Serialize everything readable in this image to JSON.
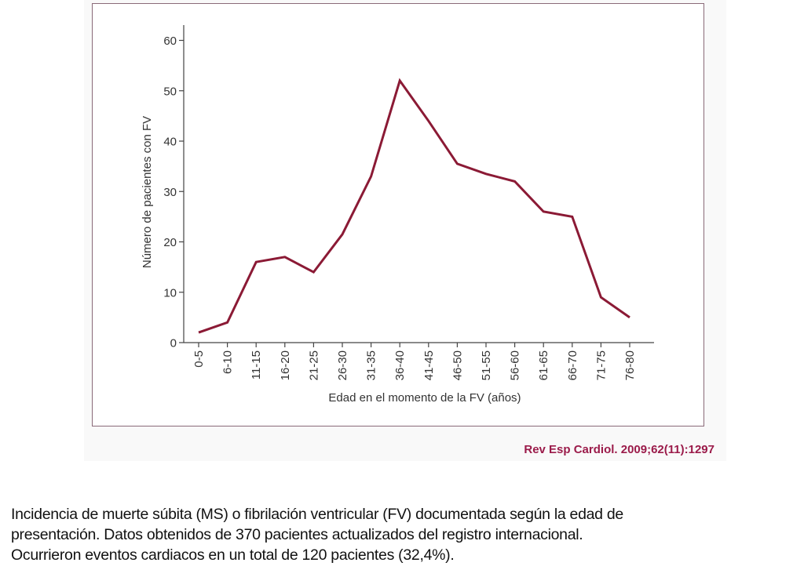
{
  "chart_data": {
    "type": "line",
    "title": "",
    "xlabel": "Edad en el momento de la FV (años)",
    "ylabel": "Número de pacientes con FV",
    "categories": [
      "0-5",
      "6-10",
      "11-15",
      "16-20",
      "21-25",
      "26-30",
      "31-35",
      "36-40",
      "41-45",
      "46-50",
      "51-55",
      "56-60",
      "61-65",
      "66-70",
      "71-75",
      "76-80"
    ],
    "series": [
      {
        "name": "Pacientes con FV",
        "values": [
          2,
          4,
          16,
          17,
          14,
          21.5,
          33,
          52,
          44,
          35.5,
          33.5,
          32,
          26,
          25,
          9,
          5
        ],
        "color": "#8b1a35"
      }
    ],
    "ylim": [
      0,
      60
    ],
    "yticks": [
      0,
      10,
      20,
      30,
      40,
      50,
      60
    ],
    "grid": false,
    "legend": "none"
  },
  "citation": "Rev Esp Cardiol. 2009;62(11):1297",
  "caption": {
    "lines": [
      "Incidencia de muerte súbita (MS) o fibrilación ventricular (FV) documentada según la edad de",
      "presentación. Datos obtenidos de 370 pacientes actualizados del registro internacional.",
      "Ocurrieron eventos cardiacos en un total de 120 pacientes (32,4%)."
    ]
  },
  "colors": {
    "line": "#8b1a35",
    "citation": "#9b1b4a",
    "frame": "#8a6a78",
    "axis": "#444444"
  }
}
